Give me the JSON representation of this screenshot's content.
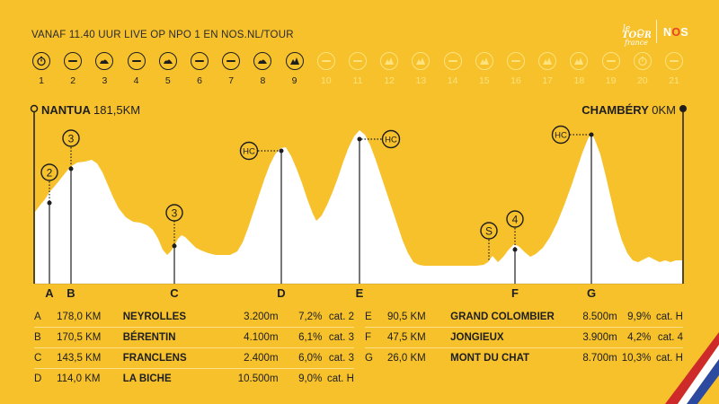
{
  "header": {
    "broadcast": "VANAF 11.40 UUR LIVE OP NPO 1 EN NOS.NL/TOUR",
    "tdf_logo_text": "Le Tour de France",
    "nos_logo": "NOS"
  },
  "stages": [
    {
      "num": "1",
      "icon": "clock-icon",
      "done": true
    },
    {
      "num": "2",
      "icon": "flat-icon",
      "done": true
    },
    {
      "num": "3",
      "icon": "hilly-icon",
      "done": true
    },
    {
      "num": "4",
      "icon": "flat-icon",
      "done": true
    },
    {
      "num": "5",
      "icon": "hilly-icon",
      "done": true
    },
    {
      "num": "6",
      "icon": "flat-icon",
      "done": true
    },
    {
      "num": "7",
      "icon": "flat-icon",
      "done": true
    },
    {
      "num": "8",
      "icon": "hilly-icon",
      "done": true
    },
    {
      "num": "9",
      "icon": "mountain-icon",
      "done": true
    },
    {
      "num": "10",
      "icon": "flat-icon",
      "done": false
    },
    {
      "num": "11",
      "icon": "flat-icon",
      "done": false
    },
    {
      "num": "12",
      "icon": "mountain-icon",
      "done": false
    },
    {
      "num": "13",
      "icon": "mountain-icon",
      "done": false
    },
    {
      "num": "14",
      "icon": "flat-icon",
      "done": false
    },
    {
      "num": "15",
      "icon": "mountain-icon",
      "done": false
    },
    {
      "num": "16",
      "icon": "flat-icon",
      "done": false
    },
    {
      "num": "17",
      "icon": "mountain-icon",
      "done": false
    },
    {
      "num": "18",
      "icon": "mountain-icon",
      "done": false
    },
    {
      "num": "19",
      "icon": "flat-icon",
      "done": false
    },
    {
      "num": "20",
      "icon": "clock-icon",
      "done": false
    },
    {
      "num": "21",
      "icon": "flat-icon",
      "done": false
    }
  ],
  "route": {
    "start_name": "NANTUA",
    "start_km": "181,5KM",
    "finish_name": "CHAMBÉRY",
    "finish_km": "0KM"
  },
  "markers": [
    {
      "letter": "A",
      "cat": "2"
    },
    {
      "letter": "B",
      "cat": "3"
    },
    {
      "letter": "C",
      "cat": "3"
    },
    {
      "letter": "D",
      "cat": "HC"
    },
    {
      "letter": "E",
      "cat": "HC"
    },
    {
      "letter": "F",
      "cat": "4"
    },
    {
      "letter": "G",
      "cat": "HC"
    },
    {
      "letter": "",
      "cat": "S"
    }
  ],
  "climbs_left": [
    {
      "letter": "A",
      "km": "178,0 KM",
      "name": "NEYROLLES",
      "height": "3.200m",
      "pct": "7,2%",
      "cat": "cat. 2"
    },
    {
      "letter": "B",
      "km": "170,5 KM",
      "name": "BÉRENTIN",
      "height": "4.100m",
      "pct": "6,1%",
      "cat": "cat. 3"
    },
    {
      "letter": "C",
      "km": "143,5 KM",
      "name": "FRANCLENS",
      "height": "2.400m",
      "pct": "6,0%",
      "cat": "cat. 3"
    },
    {
      "letter": "D",
      "km": "114,0 KM",
      "name": "LA BICHE",
      "height": "10.500m",
      "pct": "9,0%",
      "cat": "cat. H"
    }
  ],
  "climbs_right": [
    {
      "letter": "E",
      "km": "90,5 KM",
      "name": "GRAND COLOMBIER",
      "height": "8.500m",
      "pct": "9,9%",
      "cat": "cat. H"
    },
    {
      "letter": "F",
      "km": "47,5 KM",
      "name": "JONGIEUX",
      "height": "3.900m",
      "pct": "4,2%",
      "cat": "cat. 4"
    },
    {
      "letter": "G",
      "km": "26,0 KM",
      "name": "MONT DU CHAT",
      "height": "8.700m",
      "pct": "10,3%",
      "cat": "cat. H"
    }
  ],
  "colors": {
    "background": "#f6c12b",
    "profile": "#ffffff",
    "ink": "#1e1e1e",
    "future_stage": "#fde27d"
  }
}
